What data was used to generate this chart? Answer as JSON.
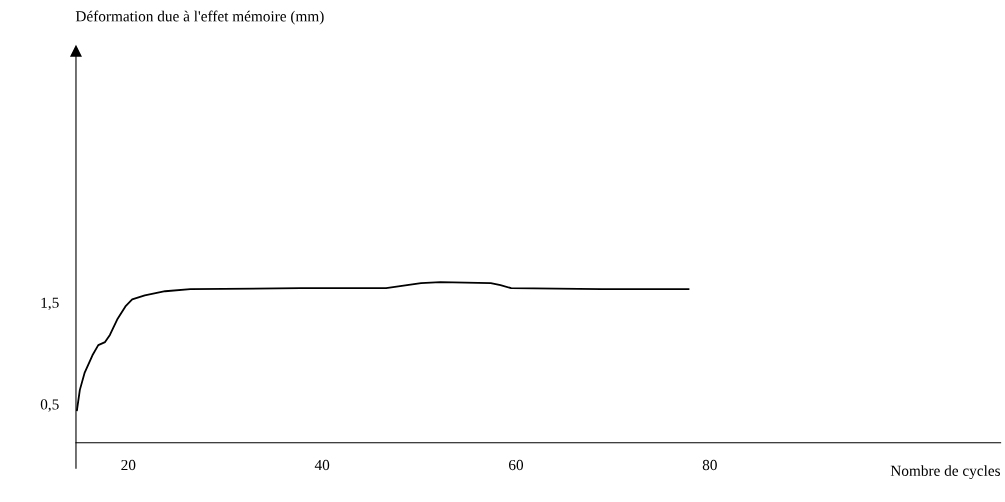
{
  "chart_data": {
    "type": "line",
    "xlabel": "Nombre de cycles",
    "ylabel": "Déformation due à l'effet mémoire (mm)",
    "xlim": [
      14.6,
      110
    ],
    "xticks": [
      20,
      40,
      60,
      80
    ],
    "ylim": [
      0.12,
      3.97
    ],
    "yticks": [
      {
        "value": 0.5,
        "label": "0,5"
      },
      {
        "value": 1.5,
        "label": "1,5"
      }
    ],
    "grid": false,
    "marker": "none",
    "line_style": "solid",
    "series": [
      {
        "color": "#000000",
        "x": [
          14.7,
          15.0,
          15.5,
          16.3,
          16.9,
          17.6,
          18.1,
          18.9,
          19.7,
          20.4,
          21.7,
          23.8,
          26.4,
          37.8,
          46.6,
          50.2,
          52.2,
          57.4,
          58.4,
          59.5,
          68.8,
          77.8
        ],
        "values": [
          0.44,
          0.64,
          0.81,
          0.98,
          1.08,
          1.11,
          1.18,
          1.34,
          1.46,
          1.53,
          1.57,
          1.61,
          1.63,
          1.64,
          1.64,
          1.69,
          1.7,
          1.69,
          1.67,
          1.64,
          1.63,
          1.63
        ]
      }
    ]
  }
}
